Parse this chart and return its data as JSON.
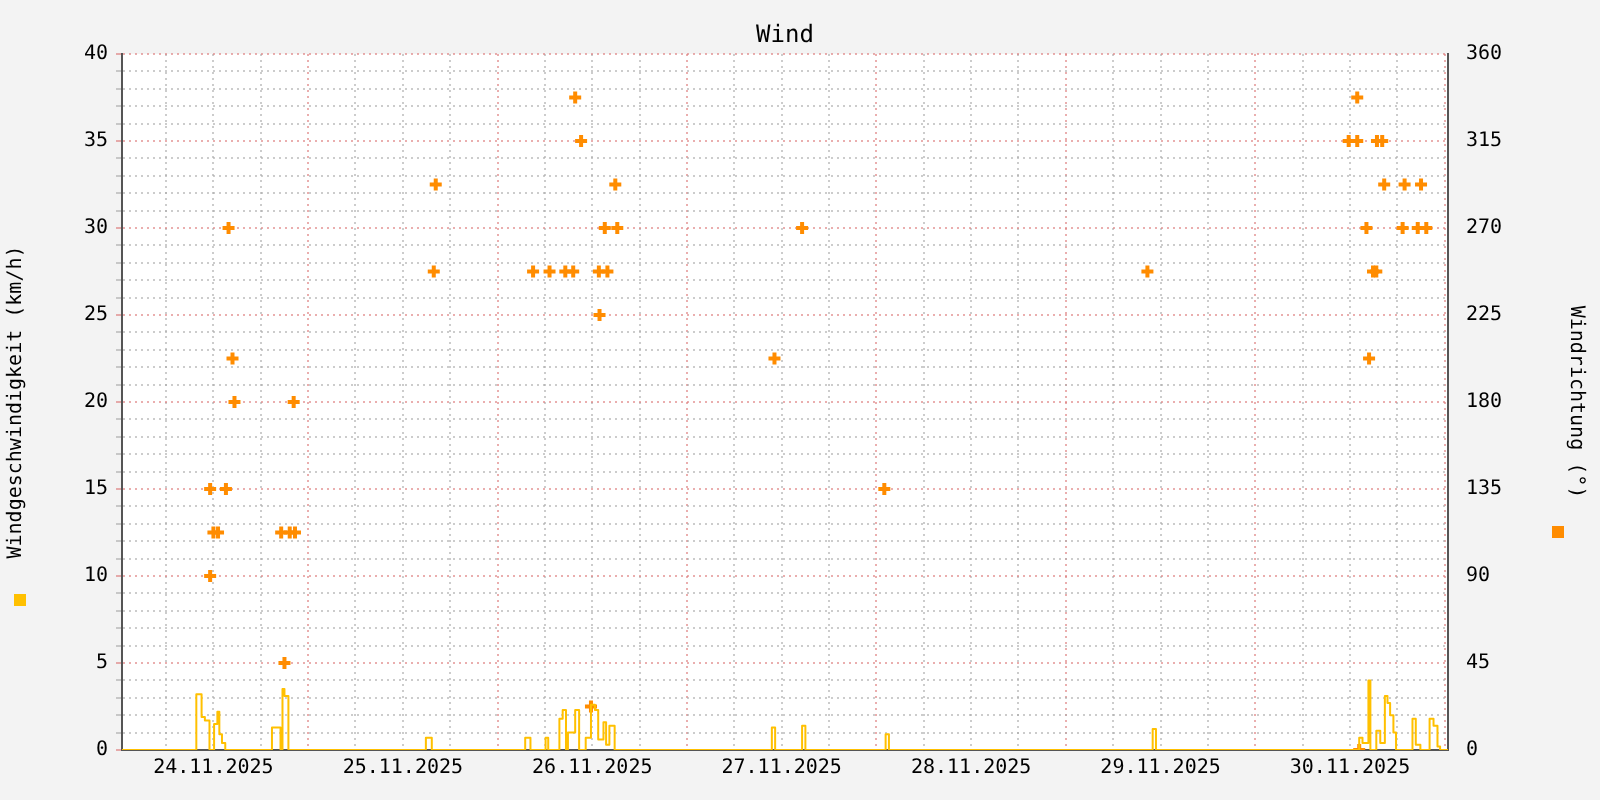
{
  "chart_data": {
    "type": "step",
    "title": "Wind",
    "ylabel": "Windgeschwindigkeit (km/h)",
    "y2label": "Windrichtung (°)",
    "xlim": [
      "2025-11-24T00:25",
      "2025-12-01T00:25"
    ],
    "xticks": [
      {
        "value": "2025-11-24T06:00",
        "label": null
      },
      {
        "value": "2025-11-24T12:00",
        "label": "24.11.2025"
      },
      {
        "value": "2025-11-24T18:00",
        "label": null
      },
      {
        "value": "2025-11-25T00:00",
        "label": null
      },
      {
        "value": "2025-11-25T06:00",
        "label": null
      },
      {
        "value": "2025-11-25T12:00",
        "label": "25.11.2025"
      },
      {
        "value": "2025-11-25T18:00",
        "label": null
      },
      {
        "value": "2025-11-26T00:00",
        "label": null
      },
      {
        "value": "2025-11-26T06:00",
        "label": null
      },
      {
        "value": "2025-11-26T12:00",
        "label": "26.11.2025"
      },
      {
        "value": "2025-11-26T18:00",
        "label": null
      },
      {
        "value": "2025-11-27T00:00",
        "label": null
      },
      {
        "value": "2025-11-27T06:00",
        "label": null
      },
      {
        "value": "2025-11-27T12:00",
        "label": "27.11.2025"
      },
      {
        "value": "2025-11-27T18:00",
        "label": null
      },
      {
        "value": "2025-11-28T00:00",
        "label": null
      },
      {
        "value": "2025-11-28T06:00",
        "label": null
      },
      {
        "value": "2025-11-28T12:00",
        "label": "28.11.2025"
      },
      {
        "value": "2025-11-28T18:00",
        "label": null
      },
      {
        "value": "2025-11-29T00:00",
        "label": null
      },
      {
        "value": "2025-11-29T06:00",
        "label": null
      },
      {
        "value": "2025-11-29T12:00",
        "label": "29.11.2025"
      },
      {
        "value": "2025-11-29T18:00",
        "label": null
      },
      {
        "value": "2025-11-30T00:00",
        "label": null
      },
      {
        "value": "2025-11-30T06:00",
        "label": null
      },
      {
        "value": "2025-11-30T12:00",
        "label": "30.11.2025"
      },
      {
        "value": "2025-11-30T18:00",
        "label": null
      },
      {
        "value": "2025-12-01T00:00",
        "label": null
      }
    ],
    "ylim": [
      0,
      40
    ],
    "yticks": [
      0,
      {
        "value": 1,
        "label": null
      },
      {
        "value": 2,
        "label": null
      },
      {
        "value": 3,
        "label": null
      },
      {
        "value": 4,
        "label": null
      },
      5,
      {
        "value": 6,
        "label": null
      },
      {
        "value": 7,
        "label": null
      },
      {
        "value": 8,
        "label": null
      },
      {
        "value": 9,
        "label": null
      },
      10,
      {
        "value": 11,
        "label": null
      },
      {
        "value": 12,
        "label": null
      },
      {
        "value": 13,
        "label": null
      },
      {
        "value": 14,
        "label": null
      },
      15,
      {
        "value": 16,
        "label": null
      },
      {
        "value": 17,
        "label": null
      },
      {
        "value": 18,
        "label": null
      },
      {
        "value": 19,
        "label": null
      },
      20,
      {
        "value": 21,
        "label": null
      },
      {
        "value": 22,
        "label": null
      },
      {
        "value": 23,
        "label": null
      },
      {
        "value": 24,
        "label": null
      },
      25,
      {
        "value": 26,
        "label": null
      },
      {
        "value": 27,
        "label": null
      },
      {
        "value": 28,
        "label": null
      },
      {
        "value": 29,
        "label": null
      },
      30,
      {
        "value": 31,
        "label": null
      },
      {
        "value": 32,
        "label": null
      },
      {
        "value": 33,
        "label": null
      },
      {
        "value": 34,
        "label": null
      },
      35,
      {
        "value": 36,
        "label": null
      },
      {
        "value": 37,
        "label": null
      },
      {
        "value": 38,
        "label": null
      },
      {
        "value": 39,
        "label": null
      },
      40
    ],
    "y2lim": [
      0,
      360
    ],
    "y2ticks": [
      0,
      45,
      90,
      135,
      180,
      225,
      270,
      315,
      360
    ],
    "grid": true,
    "series": [
      {
        "color": "#ffc000",
        "x": [
          "2025-11-24T00:25",
          "2025-11-24T09:50",
          "2025-11-24T10:30",
          "2025-11-24T10:55",
          "2025-11-24T11:30",
          "2025-11-24T12:05",
          "2025-11-24T12:30",
          "2025-11-24T12:45",
          "2025-11-24T13:05",
          "2025-11-24T13:30",
          "2025-11-24T19:25",
          "2025-11-24T20:30",
          "2025-11-24T20:45",
          "2025-11-24T21:00",
          "2025-11-24T21:30",
          "2025-11-25T14:55",
          "2025-11-25T15:40",
          "2025-11-26T03:30",
          "2025-11-26T04:10",
          "2025-11-26T06:05",
          "2025-11-26T06:25",
          "2025-11-26T07:50",
          "2025-11-26T08:15",
          "2025-11-26T08:40",
          "2025-11-26T08:55",
          "2025-11-26T09:50",
          "2025-11-26T10:20",
          "2025-11-26T11:10",
          "2025-11-26T11:50",
          "2025-11-26T12:20",
          "2025-11-26T12:45",
          "2025-11-26T13:25",
          "2025-11-26T13:45",
          "2025-11-26T14:10",
          "2025-11-26T14:50",
          "2025-11-27T10:45",
          "2025-11-27T11:10",
          "2025-11-27T14:35",
          "2025-11-27T15:00",
          "2025-11-28T01:10",
          "2025-11-28T01:35",
          "2025-11-29T11:00",
          "2025-11-29T11:25",
          "2025-11-30T13:10",
          "2025-11-30T13:35",
          "2025-11-30T14:20",
          "2025-11-30T14:35",
          "2025-11-30T15:20",
          "2025-11-30T15:50",
          "2025-11-30T16:25",
          "2025-11-30T16:45",
          "2025-11-30T17:05",
          "2025-11-30T17:30",
          "2025-11-30T17:50",
          "2025-11-30T19:55",
          "2025-11-30T20:20",
          "2025-11-30T20:55",
          "2025-11-30T22:05",
          "2025-11-30T22:35",
          "2025-11-30T23:05",
          "2025-11-30T23:25",
          "2025-12-01T00:25"
        ],
        "values": [
          0,
          3.2,
          1.9,
          1.7,
          0,
          1.5,
          2.2,
          0.9,
          0.4,
          0,
          1.3,
          0,
          3.5,
          3.1,
          0,
          0.7,
          0,
          0.7,
          0,
          0.7,
          0,
          1.8,
          2.3,
          0,
          1.0,
          2.3,
          0,
          0.7,
          2.6,
          2.3,
          0.6,
          1.6,
          0.3,
          1.4,
          0,
          1.3,
          0,
          1.4,
          0,
          0.9,
          0,
          1.2,
          0,
          0.7,
          0.4,
          4.0,
          0,
          1.1,
          0.4,
          3.1,
          2.7,
          2.0,
          1.0,
          0,
          1.8,
          0.3,
          0,
          1.8,
          1.4,
          0.2,
          0,
          0
        ]
      },
      {
        "type": "scatter",
        "axis": "y2",
        "color": "#ff8c00",
        "marker": "cross",
        "x": [
          "2025-11-24T11:35",
          "2025-11-24T11:35",
          "2025-11-24T12:00",
          "2025-11-24T12:35",
          "2025-11-24T13:35",
          "2025-11-24T13:55",
          "2025-11-24T14:25",
          "2025-11-24T14:40",
          "2025-11-24T20:35",
          "2025-11-24T21:00",
          "2025-11-24T21:40",
          "2025-11-24T22:20",
          "2025-11-24T22:10",
          "2025-11-25T15:55",
          "2025-11-25T16:10",
          "2025-11-26T04:30",
          "2025-11-26T06:35",
          "2025-11-26T08:35",
          "2025-11-26T09:35",
          "2025-11-26T09:50",
          "2025-11-26T10:35",
          "2025-11-26T11:50",
          "2025-11-26T12:50",
          "2025-11-26T12:55",
          "2025-11-26T13:35",
          "2025-11-26T13:55",
          "2025-11-26T14:55",
          "2025-11-26T15:10",
          "2025-11-27T11:05",
          "2025-11-27T14:35",
          "2025-11-28T01:00",
          "2025-11-29T10:20",
          "2025-11-30T11:50",
          "2025-11-30T12:55",
          "2025-11-30T12:55",
          "2025-11-30T13:10",
          "2025-11-30T14:05",
          "2025-11-30T14:25",
          "2025-11-30T14:55",
          "2025-11-30T15:20",
          "2025-11-30T15:25",
          "2025-11-30T16:05",
          "2025-11-30T16:20",
          "2025-11-30T18:40",
          "2025-11-30T18:55",
          "2025-11-30T20:35",
          "2025-11-30T21:00",
          "2025-11-30T21:40"
        ],
        "values": [
          90,
          135,
          112.5,
          112.5,
          135,
          270,
          202.5,
          180,
          112.5,
          45,
          112.5,
          112.5,
          180,
          247.5,
          292.5,
          247.5,
          247.5,
          247.5,
          247.5,
          337.5,
          315,
          22.5,
          247.5,
          225,
          270,
          247.5,
          292.5,
          270,
          202.5,
          270,
          135,
          247.5,
          315,
          337.5,
          315,
          0,
          270,
          202.5,
          247.5,
          247.5,
          315,
          315,
          292.5,
          270,
          292.5,
          270,
          292.5,
          270
        ]
      }
    ]
  }
}
